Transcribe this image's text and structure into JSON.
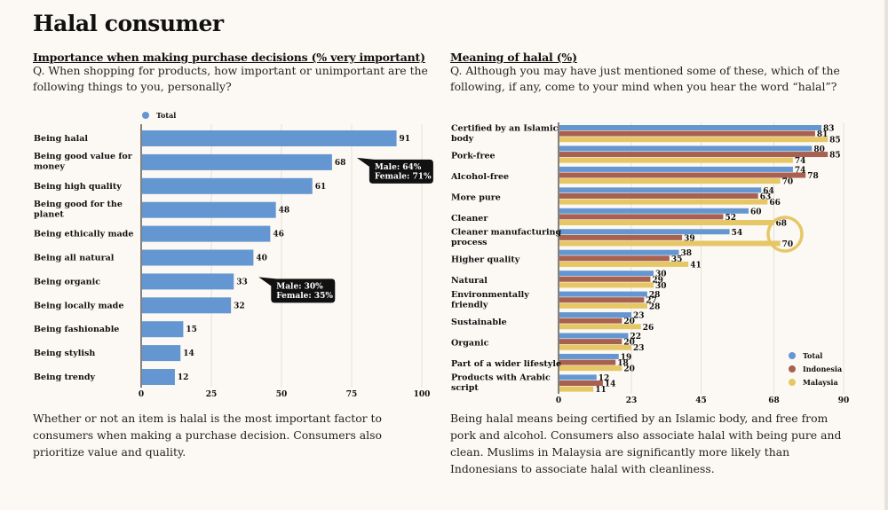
{
  "page": {
    "title": "Halal consumer"
  },
  "left_panel": {
    "subtitle": "Importance when making purchase decisions (% very important)",
    "question": "Q. When shopping for products, how important or unimportant are the following things to you, personally?",
    "caption": "Whether or not an item is halal is the most important factor to consumers when making a purchase decision. Consumers also prioritize value and quality."
  },
  "right_panel": {
    "subtitle": "Meaning of halal (%)",
    "question": "Q. Although you may have just mentioned some of these, which of the following, if any, come to your mind when you hear the word “halal”?",
    "caption": "Being halal means being certified by an Islamic body, and free from pork and alcohol. Consumers also associate halal with being pure and clean. Muslims in Malaysia are significantly more likely than Indonesians to associate halal with cleanliness."
  },
  "chart_data": [
    {
      "type": "bar",
      "orientation": "horizontal",
      "title": "Importance when making purchase decisions (% very important)",
      "categories": [
        [
          "Being halal"
        ],
        [
          "Being good value for",
          "money"
        ],
        [
          "Being high quality"
        ],
        [
          "Being good for the",
          "planet"
        ],
        [
          "Being ethically made"
        ],
        [
          "Being all natural"
        ],
        [
          "Being organic"
        ],
        [
          "Being locally made"
        ],
        [
          "Being fashionable"
        ],
        [
          "Being stylish"
        ],
        [
          "Being trendy"
        ]
      ],
      "series": [
        {
          "name": "Total",
          "color": "#6497d1",
          "values": [
            91,
            68,
            61,
            48,
            46,
            40,
            33,
            32,
            15,
            14,
            12
          ]
        }
      ],
      "xlim": [
        0,
        100
      ],
      "xticks": [
        0,
        25,
        50,
        75,
        100
      ],
      "grid": true,
      "legend": "top-left",
      "annotations": [
        {
          "category_index": 1,
          "lines": [
            "Male: 64%",
            "Female: 71%"
          ]
        },
        {
          "category_index": 6,
          "lines": [
            "Male: 30%",
            "Female: 35%"
          ]
        }
      ]
    },
    {
      "type": "bar",
      "orientation": "horizontal",
      "title": "Meaning of halal (%)",
      "categories": [
        [
          "Certified by an Islamic",
          "body"
        ],
        [
          "Pork-free"
        ],
        [
          "Alcohol-free"
        ],
        [
          "More pure"
        ],
        [
          "Cleaner"
        ],
        [
          "Cleaner manufacturing",
          "process"
        ],
        [
          "Higher quality"
        ],
        [
          "Natural"
        ],
        [
          "Environmentally",
          "friendly"
        ],
        [
          "Sustainable"
        ],
        [
          "Organic"
        ],
        [
          "Part of a wider lifestyle"
        ],
        [
          "Products with Arabic",
          "script"
        ]
      ],
      "series": [
        {
          "name": "Total",
          "color": "#6497d1",
          "values": [
            83,
            80,
            74,
            64,
            60,
            54,
            38,
            30,
            28,
            23,
            22,
            19,
            12
          ]
        },
        {
          "name": "Indonesia",
          "color": "#a8604f",
          "values": [
            81,
            85,
            78,
            63,
            52,
            39,
            35,
            29,
            27,
            20,
            20,
            18,
            14
          ]
        },
        {
          "name": "Malaysia",
          "color": "#e6c766",
          "values": [
            85,
            74,
            70,
            66,
            68,
            70,
            41,
            30,
            28,
            26,
            23,
            20,
            11
          ]
        }
      ],
      "xlim": [
        0,
        90
      ],
      "xticks": [
        0,
        23,
        45,
        68,
        90
      ],
      "grid": true,
      "legend": "bottom-right",
      "highlight": {
        "series": "Malaysia",
        "category_indices": [
          4,
          5
        ]
      }
    }
  ]
}
